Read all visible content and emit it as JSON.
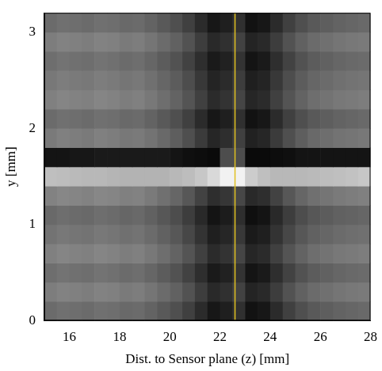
{
  "chart_data": {
    "type": "heatmap",
    "x_label": "Dist. to Sensor plane (z) [mm]",
    "y_label": "y [mm]",
    "xlim": [
      15,
      28
    ],
    "ylim": [
      0,
      3.2
    ],
    "xticks": [
      16,
      18,
      20,
      22,
      24,
      26,
      28
    ],
    "yticks": [
      0,
      1,
      2,
      3
    ],
    "grid": false,
    "color_range": [
      0,
      1
    ],
    "x_edges": [
      15,
      15.5,
      16,
      16.5,
      17,
      17.5,
      18,
      18.5,
      19,
      19.5,
      20,
      20.5,
      21,
      21.5,
      22,
      22.5,
      23,
      23.5,
      24,
      24.5,
      25,
      25.5,
      26,
      26.5,
      27,
      27.5,
      28
    ],
    "y_edges": [
      0,
      0.2,
      0.4,
      0.6,
      0.8,
      1.0,
      1.2,
      1.4,
      1.6,
      1.8,
      2.0,
      2.2,
      2.4,
      2.6,
      2.8,
      3.0,
      3.2
    ],
    "cells": [
      [
        0.42,
        0.44,
        0.43,
        0.42,
        0.44,
        0.43,
        0.41,
        0.42,
        0.39,
        0.35,
        0.31,
        0.25,
        0.17,
        0.09,
        0.12,
        0.19,
        0.07,
        0.09,
        0.17,
        0.25,
        0.31,
        0.35,
        0.37,
        0.39,
        0.4,
        0.41
      ],
      [
        0.49,
        0.51,
        0.5,
        0.49,
        0.51,
        0.5,
        0.48,
        0.49,
        0.46,
        0.42,
        0.38,
        0.32,
        0.24,
        0.16,
        0.19,
        0.26,
        0.14,
        0.16,
        0.24,
        0.32,
        0.38,
        0.42,
        0.44,
        0.46,
        0.47,
        0.48
      ],
      [
        0.43,
        0.45,
        0.44,
        0.43,
        0.45,
        0.44,
        0.42,
        0.43,
        0.4,
        0.36,
        0.32,
        0.26,
        0.18,
        0.1,
        0.13,
        0.2,
        0.08,
        0.1,
        0.18,
        0.26,
        0.32,
        0.36,
        0.38,
        0.4,
        0.41,
        0.42
      ],
      [
        0.5,
        0.52,
        0.51,
        0.5,
        0.52,
        0.51,
        0.49,
        0.5,
        0.47,
        0.43,
        0.39,
        0.33,
        0.25,
        0.17,
        0.2,
        0.27,
        0.15,
        0.17,
        0.25,
        0.33,
        0.39,
        0.43,
        0.45,
        0.47,
        0.48,
        0.49
      ],
      [
        0.45,
        0.47,
        0.46,
        0.45,
        0.47,
        0.46,
        0.44,
        0.45,
        0.42,
        0.38,
        0.34,
        0.28,
        0.2,
        0.12,
        0.15,
        0.22,
        0.1,
        0.12,
        0.2,
        0.28,
        0.34,
        0.38,
        0.4,
        0.42,
        0.43,
        0.44
      ],
      [
        0.41,
        0.43,
        0.42,
        0.41,
        0.43,
        0.42,
        0.4,
        0.41,
        0.38,
        0.34,
        0.3,
        0.24,
        0.16,
        0.08,
        0.11,
        0.18,
        0.06,
        0.08,
        0.16,
        0.24,
        0.3,
        0.34,
        0.36,
        0.38,
        0.39,
        0.4
      ],
      [
        0.51,
        0.53,
        0.52,
        0.51,
        0.53,
        0.52,
        0.5,
        0.51,
        0.48,
        0.44,
        0.4,
        0.34,
        0.26,
        0.18,
        0.21,
        0.28,
        0.16,
        0.18,
        0.26,
        0.34,
        0.4,
        0.44,
        0.46,
        0.48,
        0.49,
        0.5
      ],
      [
        0.75,
        0.74,
        0.73,
        0.72,
        0.72,
        0.71,
        0.7,
        0.7,
        0.7,
        0.7,
        0.72,
        0.74,
        0.78,
        0.85,
        0.95,
        0.95,
        0.8,
        0.75,
        0.72,
        0.72,
        0.72,
        0.73,
        0.74,
        0.75,
        0.76,
        0.78
      ],
      [
        0.08,
        0.08,
        0.09,
        0.09,
        0.1,
        0.1,
        0.1,
        0.1,
        0.1,
        0.1,
        0.08,
        0.06,
        0.05,
        0.04,
        0.3,
        0.3,
        0.04,
        0.04,
        0.05,
        0.06,
        0.08,
        0.08,
        0.08,
        0.08,
        0.08,
        0.08
      ],
      [
        0.48,
        0.5,
        0.49,
        0.48,
        0.5,
        0.49,
        0.47,
        0.48,
        0.45,
        0.41,
        0.37,
        0.31,
        0.23,
        0.15,
        0.18,
        0.25,
        0.13,
        0.15,
        0.23,
        0.31,
        0.37,
        0.41,
        0.43,
        0.45,
        0.46,
        0.47
      ],
      [
        0.42,
        0.44,
        0.43,
        0.42,
        0.44,
        0.43,
        0.41,
        0.42,
        0.39,
        0.35,
        0.31,
        0.25,
        0.17,
        0.09,
        0.12,
        0.19,
        0.07,
        0.09,
        0.17,
        0.25,
        0.31,
        0.35,
        0.37,
        0.39,
        0.4,
        0.41
      ],
      [
        0.5,
        0.52,
        0.51,
        0.5,
        0.52,
        0.51,
        0.49,
        0.5,
        0.47,
        0.43,
        0.39,
        0.33,
        0.25,
        0.17,
        0.2,
        0.27,
        0.15,
        0.17,
        0.25,
        0.33,
        0.39,
        0.43,
        0.45,
        0.47,
        0.48,
        0.49
      ],
      [
        0.47,
        0.49,
        0.48,
        0.47,
        0.49,
        0.48,
        0.46,
        0.47,
        0.44,
        0.4,
        0.36,
        0.3,
        0.22,
        0.14,
        0.17,
        0.24,
        0.12,
        0.14,
        0.22,
        0.3,
        0.36,
        0.4,
        0.42,
        0.44,
        0.45,
        0.46
      ],
      [
        0.43,
        0.45,
        0.44,
        0.43,
        0.45,
        0.44,
        0.42,
        0.43,
        0.4,
        0.36,
        0.32,
        0.26,
        0.18,
        0.1,
        0.13,
        0.2,
        0.08,
        0.1,
        0.18,
        0.26,
        0.32,
        0.36,
        0.38,
        0.4,
        0.41,
        0.42
      ],
      [
        0.49,
        0.51,
        0.5,
        0.49,
        0.51,
        0.5,
        0.48,
        0.49,
        0.46,
        0.42,
        0.38,
        0.32,
        0.24,
        0.16,
        0.19,
        0.26,
        0.14,
        0.16,
        0.24,
        0.32,
        0.38,
        0.42,
        0.44,
        0.46,
        0.47,
        0.48
      ],
      [
        0.42,
        0.44,
        0.43,
        0.42,
        0.44,
        0.43,
        0.41,
        0.42,
        0.39,
        0.35,
        0.31,
        0.25,
        0.17,
        0.09,
        0.12,
        0.19,
        0.07,
        0.09,
        0.17,
        0.25,
        0.31,
        0.35,
        0.37,
        0.39,
        0.4,
        0.41
      ]
    ],
    "vertical_lines": [
      {
        "x": 22.6,
        "color": "#e0c020"
      }
    ]
  }
}
